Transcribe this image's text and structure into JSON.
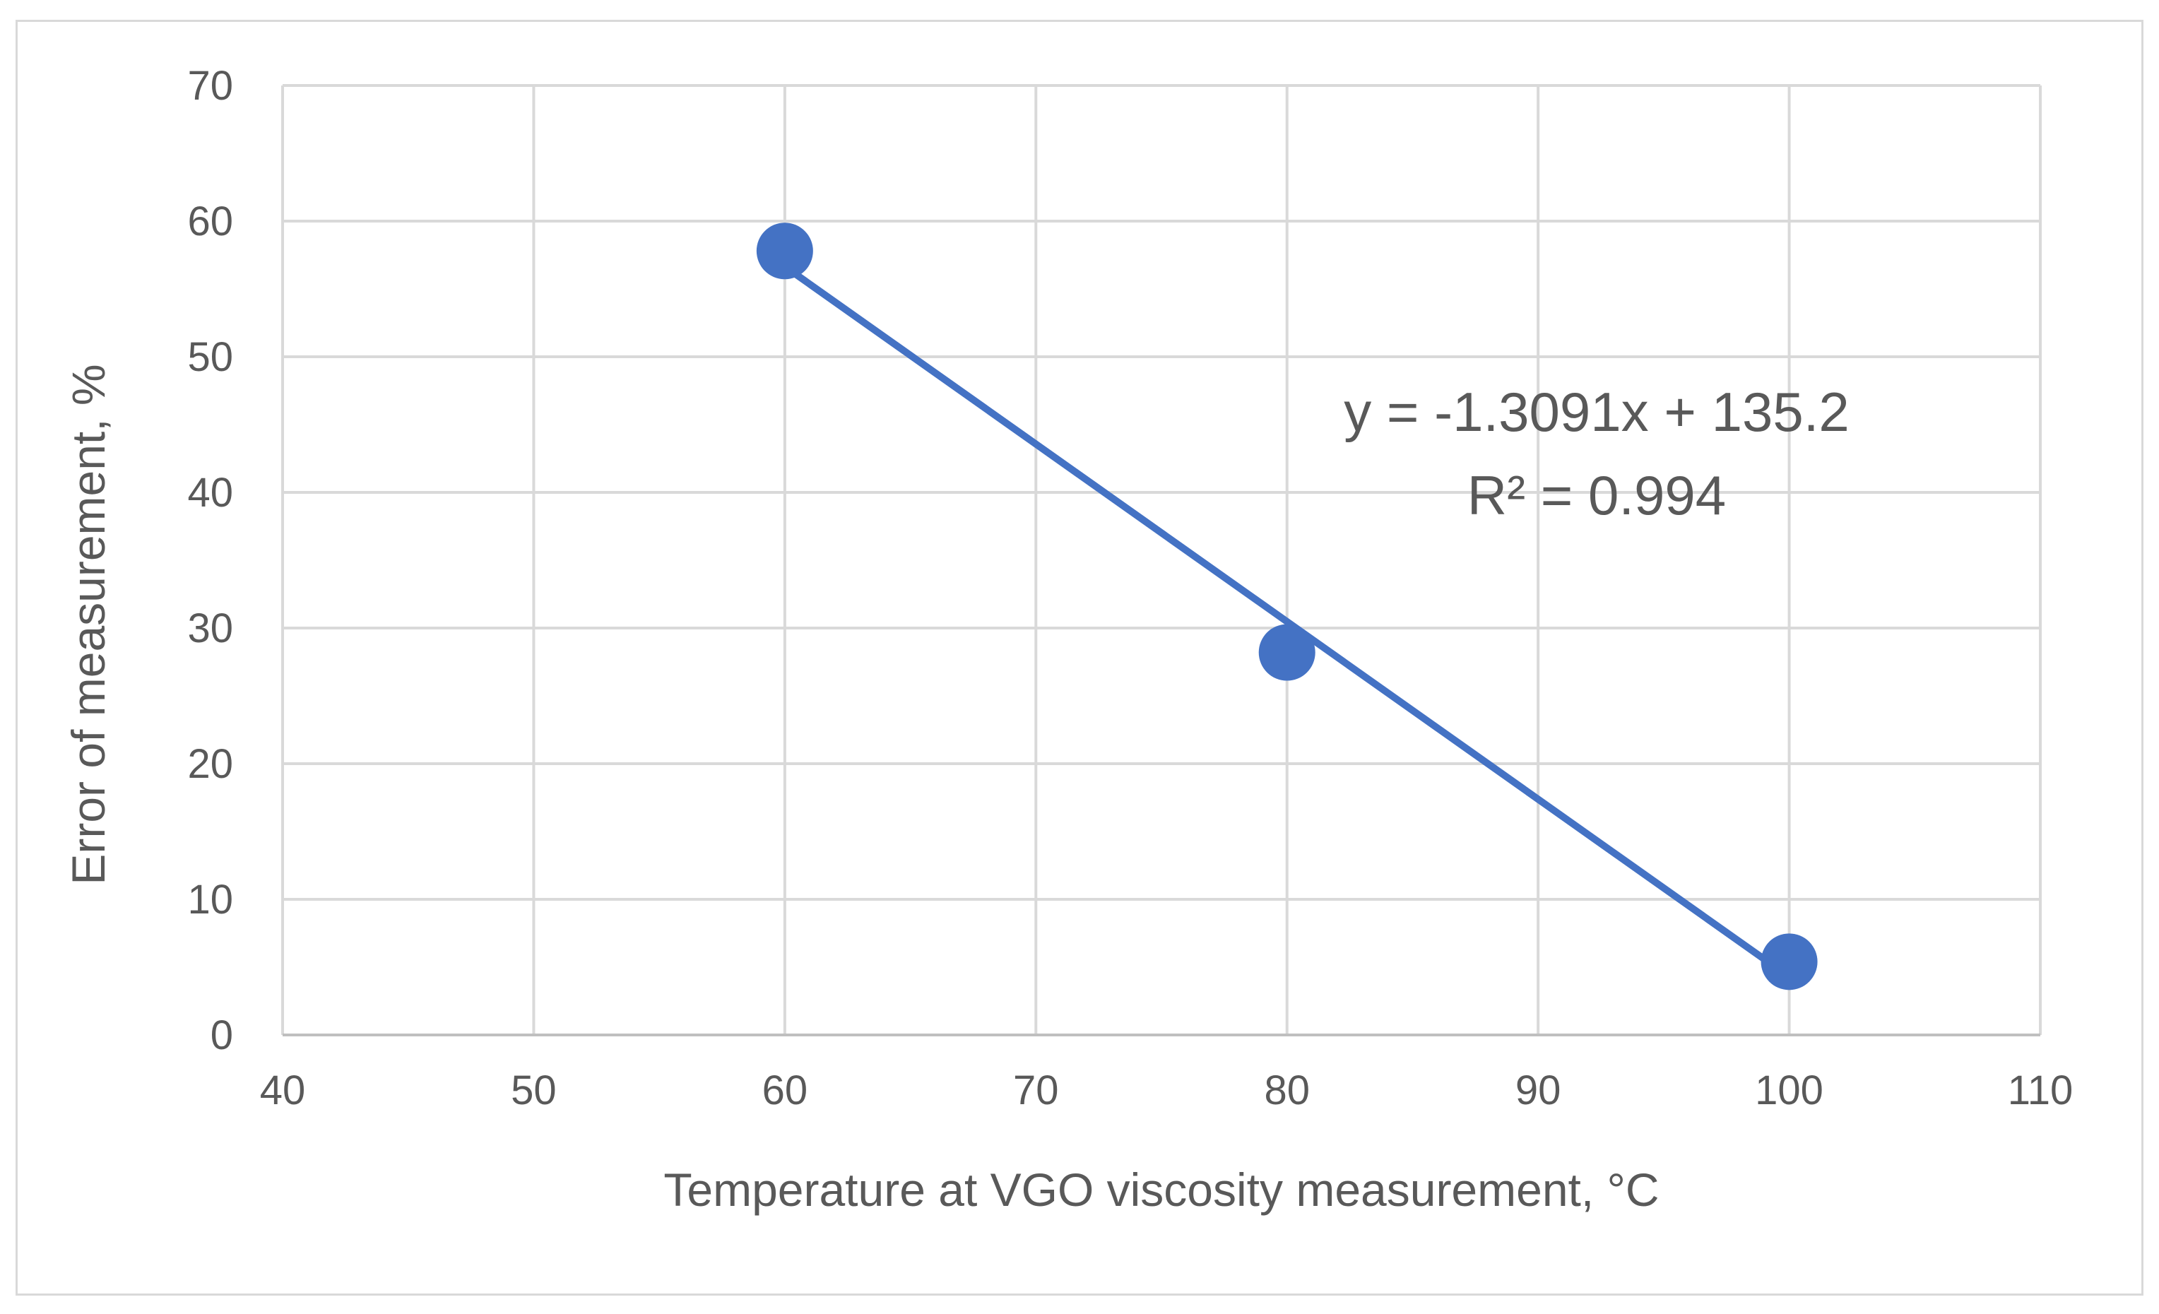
{
  "chart_data": {
    "type": "scatter",
    "title": "",
    "xlabel": "Temperature at VGO viscosity measurement, °C",
    "ylabel": "Error of measurement, %",
    "xlim": [
      40,
      110
    ],
    "ylim": [
      0,
      70
    ],
    "x_ticks": [
      40,
      50,
      60,
      70,
      80,
      90,
      100,
      110
    ],
    "y_ticks": [
      0,
      10,
      20,
      30,
      40,
      50,
      60,
      70
    ],
    "x_tick_labels": [
      "40",
      "50",
      "60",
      "70",
      "80",
      "90",
      "100",
      "110"
    ],
    "y_tick_labels": [
      "0",
      "10",
      "20",
      "30",
      "40",
      "50",
      "60",
      "70"
    ],
    "grid": true,
    "legend": "none",
    "series": [
      {
        "name": "Error of measurement",
        "color": "#4472c4",
        "x": [
          60,
          80,
          100
        ],
        "y": [
          57.8,
          28.2,
          5.4
        ]
      }
    ],
    "trendline": {
      "type": "linear",
      "slope": -1.3091,
      "intercept": 135.2,
      "x_range": [
        60,
        100
      ],
      "color": "#4472c4",
      "equation_label": "y = -1.3091x + 135.2",
      "r2_label": "R² = 0.994"
    }
  }
}
